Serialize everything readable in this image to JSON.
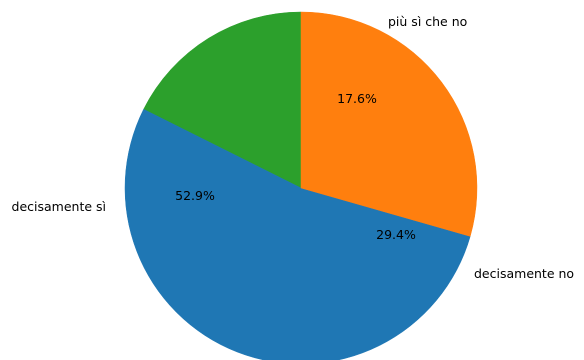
{
  "chart_data": {
    "type": "pie",
    "start_angle_deg": 90,
    "direction": "counterclockwise",
    "slices": [
      {
        "label": "più sì che no",
        "percent": 17.6,
        "pct_label": "17.6%",
        "color": "#2ca02c"
      },
      {
        "label": "decisamente sì",
        "percent": 52.9,
        "pct_label": "52.9%",
        "color": "#1f77b4"
      },
      {
        "label": "decisamente no",
        "percent": 29.4,
        "pct_label": "29.4%",
        "color": "#ff7f0e"
      }
    ]
  }
}
